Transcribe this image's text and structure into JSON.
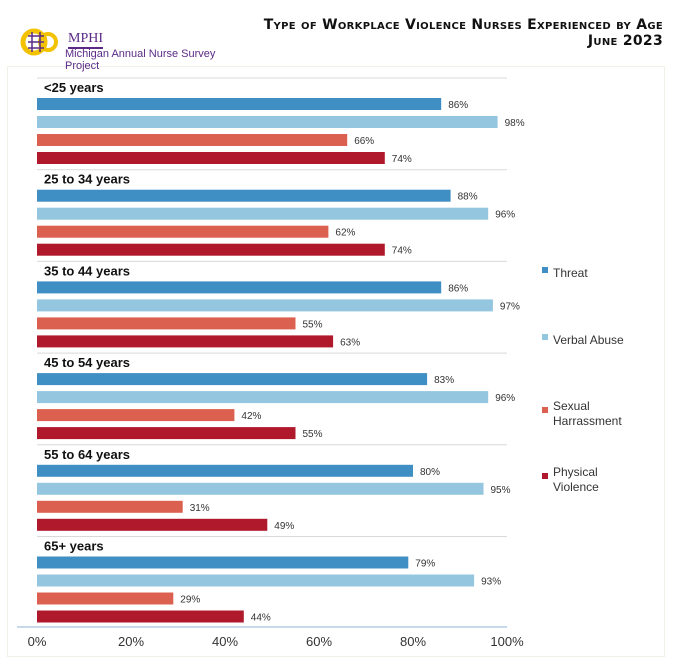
{
  "header": {
    "title": "Type of Workplace Violence Nurses Experienced by Age",
    "subtitle": "June 2023",
    "logo_name": "MPHI",
    "logo_caption": "Michigan Annual Nurse Survey Project"
  },
  "chart_data": {
    "type": "bar",
    "orientation": "horizontal",
    "title": "Type of Workplace Violence Nurses Experienced by Age",
    "subtitle": "June 2023",
    "categories": [
      "<25 years",
      "25 to 34 years",
      "35 to 44 years",
      "45 to 54 years",
      "55 to 64 years",
      "65+ years"
    ],
    "series": [
      {
        "name": "Threat",
        "color": "#3f8fc5",
        "values": [
          86,
          88,
          86,
          83,
          80,
          79
        ]
      },
      {
        "name": "Verbal Abuse",
        "color": "#95c6e0",
        "values": [
          98,
          96,
          97,
          96,
          95,
          93
        ]
      },
      {
        "name": "Sexual Harrassment",
        "color": "#dc604f",
        "values": [
          66,
          62,
          55,
          42,
          31,
          29
        ]
      },
      {
        "name": "Physical Violence",
        "color": "#b0182c",
        "values": [
          74,
          74,
          63,
          55,
          49,
          44
        ]
      }
    ],
    "value_labels_suffix": "%",
    "xlim": [
      0,
      100
    ],
    "xticks": [
      "0%",
      "20%",
      "40%",
      "60%",
      "80%",
      "100%"
    ],
    "legend": "right",
    "grid": false
  }
}
